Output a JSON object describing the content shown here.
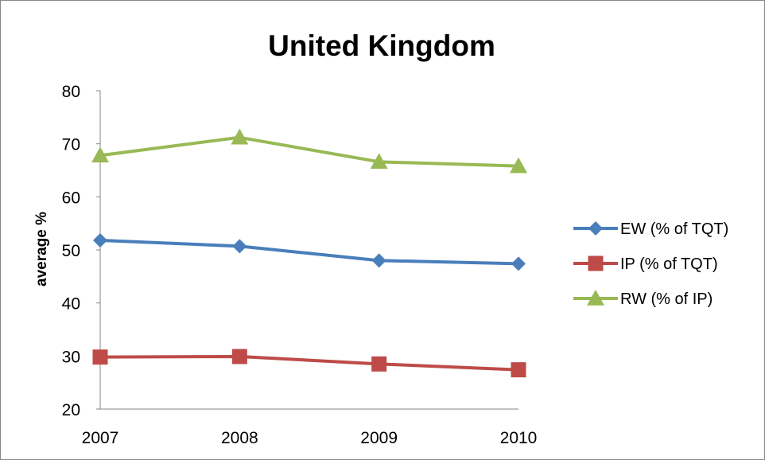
{
  "chart_data": {
    "type": "line",
    "title": "United Kingdom",
    "xlabel": "",
    "ylabel": "average %",
    "ylim": [
      20,
      80
    ],
    "yticks": [
      20,
      30,
      40,
      50,
      60,
      70,
      80
    ],
    "grid": false,
    "legend_position": "right",
    "categories": [
      "2007",
      "2008",
      "2009",
      "2010"
    ],
    "series": [
      {
        "name": "EW (% of TQT)",
        "values": [
          51.8,
          50.7,
          48.0,
          47.4
        ],
        "color": "#4a7ebb",
        "marker": "diamond"
      },
      {
        "name": "IP (% of TQT)",
        "values": [
          29.8,
          29.9,
          28.5,
          27.4
        ],
        "color": "#be4b48",
        "marker": "square"
      },
      {
        "name": "RW (% of IP)",
        "values": [
          67.8,
          71.2,
          66.6,
          65.8
        ],
        "color": "#98b954",
        "marker": "triangle"
      }
    ]
  }
}
